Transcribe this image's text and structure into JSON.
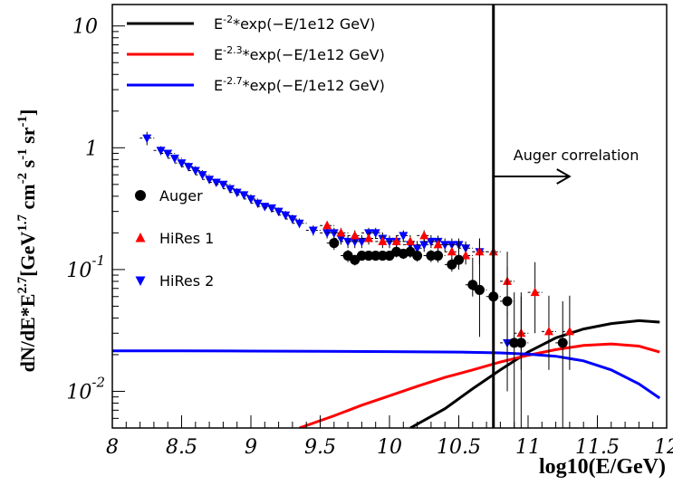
{
  "chart_data": {
    "type": "scatter",
    "xlabel": "log10(E/GeV)",
    "ylabel_parts": {
      "base": "dN/dE*E",
      "exp1": "2.7",
      "bracket_open": "[GeV",
      "exp2": "1.7",
      "cm": " cm",
      "exp3": "-2",
      "s": " s",
      "exp4": "-1",
      "sr": " sr",
      "exp5": "-1",
      "bracket_close": "]"
    },
    "xlim": [
      8,
      12
    ],
    "ylim": [
      0.005,
      15
    ],
    "yscale": "log",
    "x_ticks": [
      8,
      8.5,
      9,
      9.5,
      10,
      10.5,
      11,
      11.5,
      12
    ],
    "x_tick_labels": [
      "8",
      "8.5",
      "9",
      "9.5",
      "10",
      "10.5",
      "11",
      "11.5",
      "12"
    ],
    "y_ticks": [
      {
        "value": 10,
        "base": "10",
        "exp": ""
      },
      {
        "value": 1,
        "base": "1",
        "exp": ""
      },
      {
        "value": 0.1,
        "base": "10",
        "exp": "-1"
      },
      {
        "value": 0.01,
        "base": "10",
        "exp": "-2"
      }
    ],
    "legend_lines": [
      {
        "color": "#000000",
        "base": "E",
        "exp": "-2",
        "rest": "*exp(−E/1e12 GeV)"
      },
      {
        "color": "#ff0000",
        "base": "E",
        "exp": "-2.3",
        "rest": "*exp(−E/1e12 GeV)"
      },
      {
        "color": "#0000ff",
        "base": "E",
        "exp": "-2.7",
        "rest": "*exp(−E/1e12 GeV)"
      }
    ],
    "legend_markers": [
      {
        "name": "Auger",
        "marker": "circle",
        "color": "#000000"
      },
      {
        "name": "HiRes 1",
        "marker": "triangle-up",
        "color": "#ff0000"
      },
      {
        "name": "HiRes 2",
        "marker": "triangle-down",
        "color": "#0000ff"
      }
    ],
    "vline": {
      "x": 10.75,
      "label": "Auger correlation"
    },
    "curves": [
      {
        "color": "#000000",
        "x": [
          10.15,
          10.4,
          10.6,
          10.8,
          11.0,
          11.2,
          11.4,
          11.6,
          11.8,
          11.95
        ],
        "y": [
          0.005,
          0.0072,
          0.0105,
          0.015,
          0.021,
          0.0275,
          0.0325,
          0.036,
          0.038,
          0.037
        ]
      },
      {
        "color": "#ff0000",
        "x": [
          9.35,
          9.6,
          9.8,
          10.0,
          10.2,
          10.4,
          10.6,
          10.8,
          11.0,
          11.2,
          11.4,
          11.6,
          11.8,
          11.95
        ],
        "y": [
          0.005,
          0.0063,
          0.0077,
          0.0092,
          0.011,
          0.013,
          0.015,
          0.0174,
          0.0198,
          0.022,
          0.0238,
          0.0245,
          0.0235,
          0.021
        ]
      },
      {
        "color": "#0000ff",
        "x": [
          8.0,
          8.5,
          9.0,
          9.5,
          10.0,
          10.5,
          10.8,
          11.0,
          11.2,
          11.4,
          11.6,
          11.8,
          11.95
        ],
        "y": [
          0.0215,
          0.0215,
          0.0214,
          0.0213,
          0.0212,
          0.021,
          0.0207,
          0.0202,
          0.0194,
          0.0178,
          0.015,
          0.0115,
          0.0088
        ]
      }
    ],
    "auger": {
      "x": [
        9.6,
        9.7,
        9.75,
        9.8,
        9.85,
        9.9,
        9.95,
        10.0,
        10.05,
        10.1,
        10.15,
        10.2,
        10.3,
        10.35,
        10.45,
        10.5,
        10.6,
        10.65,
        10.75,
        10.85,
        10.9,
        10.95,
        11.25
      ],
      "y": [
        0.165,
        0.13,
        0.12,
        0.13,
        0.13,
        0.13,
        0.13,
        0.13,
        0.14,
        0.135,
        0.14,
        0.13,
        0.13,
        0.13,
        0.11,
        0.12,
        0.075,
        0.068,
        0.06,
        0.055,
        0.025,
        0.025,
        0.025
      ],
      "err_lo": [
        0.02,
        0.015,
        0.012,
        0.012,
        0.012,
        0.012,
        0.012,
        0.012,
        0.014,
        0.013,
        0.015,
        0.014,
        0.015,
        0.016,
        0.014,
        0.02,
        0.015,
        0.04,
        0.045,
        0.045,
        0.02,
        0.02,
        0.02
      ],
      "err_hi": [
        0.02,
        0.015,
        0.012,
        0.012,
        0.012,
        0.012,
        0.012,
        0.012,
        0.014,
        0.013,
        0.015,
        0.014,
        0.015,
        0.016,
        0.014,
        0.06,
        0.05,
        0.1,
        0.08,
        0.05,
        0.04,
        0.04,
        0.03
      ]
    },
    "hires1": {
      "x": [
        9.55,
        9.65,
        9.75,
        9.85,
        9.95,
        10.05,
        10.15,
        10.25,
        10.35,
        10.45,
        10.55,
        10.65,
        10.75,
        10.85,
        10.95,
        11.05,
        11.15,
        11.3
      ],
      "y": [
        0.23,
        0.2,
        0.19,
        0.18,
        0.17,
        0.17,
        0.17,
        0.19,
        0.16,
        0.14,
        0.13,
        0.14,
        0.14,
        0.08,
        0.03,
        0.065,
        0.031,
        0.031
      ],
      "err_lo": [
        0.02,
        0.02,
        0.02,
        0.02,
        0.02,
        0.02,
        0.02,
        0.02,
        0.02,
        0.02,
        0.02,
        0.03,
        0.04,
        0.04,
        0.015,
        0.035,
        0.016,
        0.016
      ],
      "err_hi": [
        0.02,
        0.02,
        0.02,
        0.02,
        0.02,
        0.02,
        0.02,
        0.02,
        0.02,
        0.02,
        0.03,
        0.04,
        0.06,
        0.06,
        0.03,
        0.05,
        0.03,
        0.03
      ]
    },
    "hires2": {
      "x": [
        8.25,
        8.35,
        8.4,
        8.45,
        8.5,
        8.55,
        8.6,
        8.65,
        8.7,
        8.75,
        8.8,
        8.85,
        8.9,
        8.95,
        9.0,
        9.05,
        9.1,
        9.15,
        9.2,
        9.25,
        9.3,
        9.35,
        9.45,
        9.55,
        9.6,
        9.65,
        9.7,
        9.75,
        9.8,
        9.85,
        9.9,
        9.95,
        10.0,
        10.05,
        10.1,
        10.15,
        10.2,
        10.25,
        10.3,
        10.35,
        10.4,
        10.45,
        10.5,
        10.55,
        10.65,
        10.85
      ],
      "y": [
        1.2,
        0.95,
        0.9,
        0.82,
        0.75,
        0.7,
        0.65,
        0.6,
        0.55,
        0.52,
        0.5,
        0.46,
        0.43,
        0.41,
        0.38,
        0.35,
        0.33,
        0.32,
        0.3,
        0.28,
        0.26,
        0.24,
        0.21,
        0.2,
        0.2,
        0.18,
        0.17,
        0.17,
        0.17,
        0.2,
        0.2,
        0.18,
        0.17,
        0.17,
        0.19,
        0.16,
        0.15,
        0.16,
        0.17,
        0.17,
        0.16,
        0.16,
        0.16,
        0.15,
        0.14,
        0.025
      ],
      "err_lo": [
        0.15,
        0.08,
        0.06,
        0.05,
        0.05,
        0.04,
        0.04,
        0.04,
        0.03,
        0.03,
        0.03,
        0.03,
        0.03,
        0.03,
        0.03,
        0.02,
        0.02,
        0.02,
        0.02,
        0.02,
        0.02,
        0.02,
        0.02,
        0.02,
        0.02,
        0.02,
        0.02,
        0.02,
        0.02,
        0.02,
        0.02,
        0.02,
        0.02,
        0.02,
        0.02,
        0.02,
        0.02,
        0.02,
        0.02,
        0.02,
        0.02,
        0.02,
        0.02,
        0.02,
        0.03,
        0.01
      ],
      "err_hi": [
        0.15,
        0.08,
        0.06,
        0.05,
        0.05,
        0.04,
        0.04,
        0.04,
        0.03,
        0.03,
        0.03,
        0.03,
        0.03,
        0.03,
        0.03,
        0.02,
        0.02,
        0.02,
        0.02,
        0.02,
        0.02,
        0.02,
        0.02,
        0.02,
        0.02,
        0.02,
        0.02,
        0.02,
        0.02,
        0.02,
        0.02,
        0.02,
        0.02,
        0.02,
        0.02,
        0.02,
        0.02,
        0.02,
        0.02,
        0.02,
        0.02,
        0.02,
        0.02,
        0.02,
        0.04,
        0.02
      ]
    }
  }
}
